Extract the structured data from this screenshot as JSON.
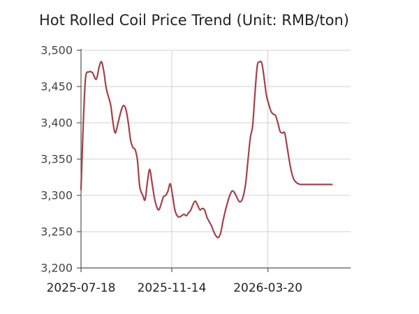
{
  "chart_data": {
    "type": "line",
    "title": "Hot Rolled Coil Price Trend (Unit: RMB/ton)",
    "xlabel": "",
    "ylabel": "",
    "ylim": [
      3200,
      3500
    ],
    "yticks": [
      3200,
      3250,
      3300,
      3350,
      3400,
      3450,
      3500
    ],
    "ytick_labels": [
      "3,200",
      "3,250",
      "3,300",
      "3,350",
      "3,400",
      "3,450",
      "3,500"
    ],
    "xlim": [
      "2025-07-18",
      "2026-06-12"
    ],
    "xticks": [
      "2025-07-18",
      "2025-11-14",
      "2026-03-20"
    ],
    "xtick_labels": [
      "2025-07-18",
      "2025-11-14",
      "2026-03-20"
    ],
    "grid": {
      "x": true,
      "y": true
    },
    "series": [
      {
        "color": "#a3414a",
        "x": [
          "2025-07-18",
          "2025-07-21",
          "2025-07-24",
          "2025-07-28",
          "2025-08-02",
          "2025-08-07",
          "2025-08-11",
          "2025-08-14",
          "2025-08-17",
          "2025-08-20",
          "2025-08-23",
          "2025-08-26",
          "2025-08-29",
          "2025-09-01",
          "2025-09-05",
          "2025-09-09",
          "2025-09-12",
          "2025-09-15",
          "2025-09-18",
          "2025-09-21",
          "2025-09-24",
          "2025-09-27",
          "2025-09-30",
          "2025-10-03",
          "2025-10-07",
          "2025-10-10",
          "2025-10-13",
          "2025-10-16",
          "2025-10-19",
          "2025-10-22",
          "2025-10-25",
          "2025-10-28",
          "2025-10-31",
          "2025-11-03",
          "2025-11-06",
          "2025-11-09",
          "2025-11-12",
          "2025-11-15",
          "2025-11-18",
          "2025-11-21",
          "2025-11-24",
          "2025-11-27",
          "2025-11-30",
          "2025-12-03",
          "2025-12-06",
          "2025-12-09",
          "2025-12-12",
          "2025-12-15",
          "2025-12-18",
          "2025-12-21",
          "2025-12-24",
          "2025-12-27",
          "2025-12-30",
          "2026-01-02",
          "2026-01-05",
          "2026-01-08",
          "2026-01-11",
          "2026-01-14",
          "2026-01-17",
          "2026-01-20",
          "2026-01-23",
          "2026-01-26",
          "2026-01-29",
          "2026-02-01",
          "2026-02-04",
          "2026-02-07",
          "2026-02-10",
          "2026-02-13",
          "2026-02-16",
          "2026-02-19",
          "2026-02-22",
          "2026-02-25",
          "2026-02-28",
          "2026-03-03",
          "2026-03-06",
          "2026-03-09",
          "2026-03-12",
          "2026-03-15",
          "2026-03-18",
          "2026-03-21",
          "2026-03-24",
          "2026-03-27",
          "2026-03-30",
          "2026-04-02",
          "2026-04-05",
          "2026-04-08",
          "2026-04-11",
          "2026-04-14",
          "2026-04-17",
          "2026-04-20",
          "2026-04-23",
          "2026-04-26",
          "2026-04-29",
          "2026-05-02",
          "2026-05-05",
          "2026-05-08",
          "2026-05-11",
          "2026-05-14",
          "2026-05-17",
          "2026-05-20",
          "2026-05-23",
          "2026-05-26",
          "2026-05-29",
          "2026-06-01",
          "2026-06-04",
          "2026-06-07",
          "2026-06-10",
          "2026-06-12"
        ],
        "values": [
          3308,
          3400,
          3462,
          3470,
          3469,
          3460,
          3478,
          3484,
          3470,
          3448,
          3436,
          3424,
          3400,
          3386,
          3402,
          3418,
          3424,
          3418,
          3400,
          3376,
          3366,
          3363,
          3348,
          3312,
          3300,
          3294,
          3318,
          3336,
          3318,
          3298,
          3285,
          3280,
          3288,
          3298,
          3300,
          3306,
          3316,
          3300,
          3280,
          3272,
          3270,
          3272,
          3274,
          3272,
          3276,
          3280,
          3288,
          3292,
          3286,
          3280,
          3282,
          3280,
          3270,
          3264,
          3258,
          3250,
          3244,
          3242,
          3248,
          3264,
          3278,
          3290,
          3300,
          3306,
          3304,
          3298,
          3292,
          3292,
          3300,
          3318,
          3350,
          3380,
          3396,
          3440,
          3478,
          3484,
          3482,
          3462,
          3438,
          3426,
          3416,
          3412,
          3410,
          3400,
          3388,
          3386,
          3386,
          3368,
          3348,
          3332,
          3322,
          3318,
          3316,
          3315,
          3315,
          3315,
          3315,
          3315,
          3315,
          3315,
          3315,
          3315,
          3315,
          3315,
          3315,
          3315,
          3315,
          3315
        ]
      }
    ]
  }
}
